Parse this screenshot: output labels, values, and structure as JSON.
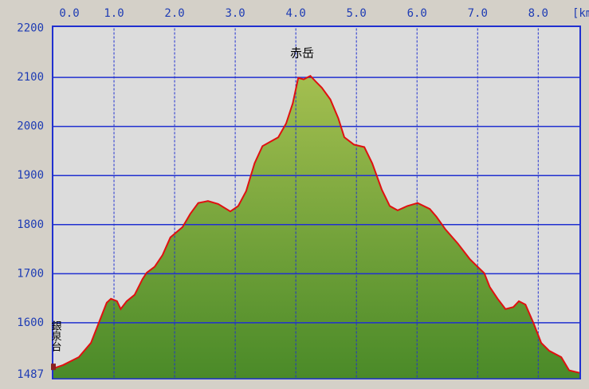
{
  "chart_data": {
    "type": "area",
    "x_label": "[km]",
    "x": [
      0,
      0.16,
      0.42,
      0.62,
      0.75,
      0.88,
      0.95,
      1.05,
      1.11,
      1.21,
      1.34,
      1.47,
      1.54,
      1.67,
      1.8,
      1.93,
      2.13,
      2.26,
      2.39,
      2.55,
      2.72,
      2.92,
      3.05,
      3.18,
      3.32,
      3.45,
      3.58,
      3.71,
      3.84,
      3.95,
      4.04,
      4.13,
      4.24,
      4.34,
      4.43,
      4.57,
      4.7,
      4.8,
      4.96,
      5.13,
      5.26,
      5.42,
      5.55,
      5.68,
      5.84,
      6.01,
      6.21,
      6.32,
      6.47,
      6.67,
      6.87,
      7.0,
      7.11,
      7.2,
      7.33,
      7.46,
      7.59,
      7.68,
      7.79,
      7.92,
      8.05,
      8.18,
      8.38,
      8.51,
      8.68
    ],
    "series": [
      {
        "line_color": "#e01010",
        "fill_top": "#a4bf50",
        "fill_bottom": "#4a8a28",
        "values": [
          1507,
          1514,
          1530,
          1559,
          1600,
          1641,
          1649,
          1644,
          1628,
          1644,
          1657,
          1689,
          1702,
          1714,
          1738,
          1774,
          1795,
          1822,
          1844,
          1848,
          1842,
          1827,
          1838,
          1868,
          1925,
          1960,
          1969,
          1978,
          2006,
          2047,
          2099,
          2096,
          2103,
          2090,
          2079,
          2055,
          2017,
          1978,
          1963,
          1958,
          1925,
          1871,
          1838,
          1829,
          1838,
          1844,
          1832,
          1816,
          1790,
          1762,
          1730,
          1714,
          1701,
          1673,
          1649,
          1628,
          1632,
          1644,
          1637,
          1600,
          1559,
          1543,
          1530,
          1503,
          1498
        ]
      }
    ],
    "annotations": [
      {
        "text": "赤岳",
        "x": 4.13,
        "y": 2103
      },
      {
        "text": "銀泉台",
        "x": 0,
        "y": 1507
      }
    ],
    "xlim": [
      0,
      8.68
    ],
    "xticks": [
      {
        "value": 0,
        "label": "0.0"
      },
      {
        "value": 1,
        "label": "1.0"
      },
      {
        "value": 2,
        "label": "2.0"
      },
      {
        "value": 3,
        "label": "3.0"
      },
      {
        "value": 4,
        "label": "4.0"
      },
      {
        "value": 5,
        "label": "5.0"
      },
      {
        "value": 6,
        "label": "6.0"
      },
      {
        "value": 7,
        "label": "7.0"
      },
      {
        "value": 8,
        "label": "8.0"
      }
    ],
    "ylim": [
      1487,
      2200
    ],
    "yticks": [
      1487,
      1600,
      1700,
      1800,
      1900,
      2000,
      2100,
      2200
    ],
    "grid": true,
    "grid_color": "#2030d0"
  }
}
